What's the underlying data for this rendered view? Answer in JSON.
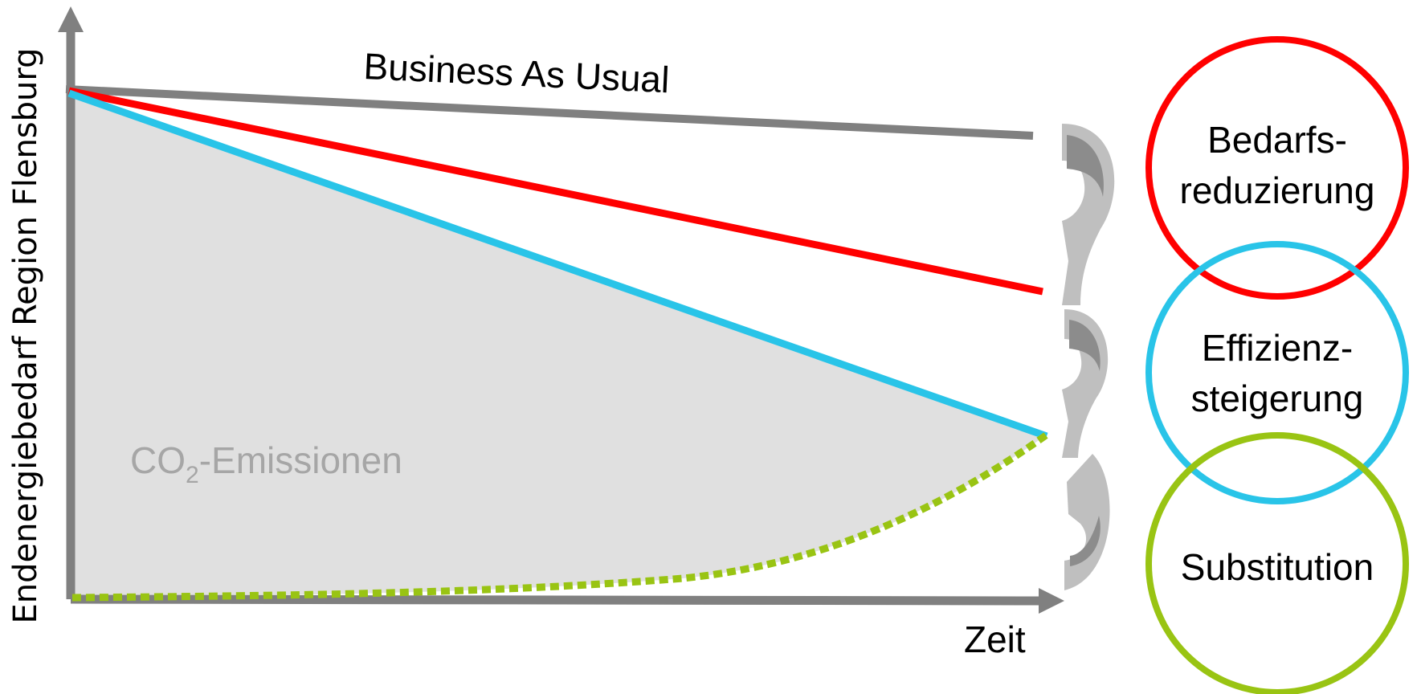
{
  "axes": {
    "y_label": "Endenergiebedarf Region Flensburg",
    "x_label": "Zeit",
    "color": "#808080"
  },
  "lines": {
    "bau": {
      "label": "Business As Usual",
      "color": "#808080"
    },
    "reduction": {
      "color": "#ff0000"
    },
    "efficiency": {
      "color": "#29c4e8"
    },
    "substitution": {
      "color": "#99c413"
    }
  },
  "area": {
    "label_prefix": "CO",
    "label_sub": "2",
    "label_suffix": "-Emissionen",
    "fill": "#e0e0e0",
    "label_color": "#a6a6a6"
  },
  "circles": [
    {
      "line1": "Bedarfs-",
      "line2": "reduzierung",
      "color": "#ff0000"
    },
    {
      "line1": "Effizienz-",
      "line2": "steigerung",
      "color": "#29c4e8"
    },
    {
      "line1": "Substitution",
      "line2": "",
      "color": "#99c413"
    }
  ],
  "arrows": {
    "fill": "#bfbfbf",
    "shade": "#8c8c8c",
    "icon": "curved-down-arrow"
  }
}
